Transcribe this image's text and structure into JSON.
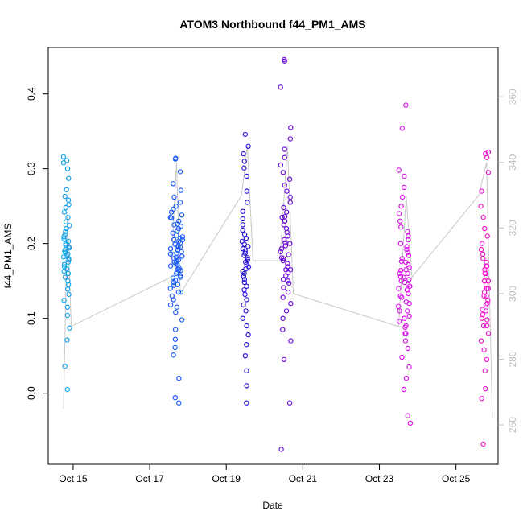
{
  "chart_data": {
    "type": "scatter",
    "title": "ATOM3 Northbound f44_PM1_AMS",
    "xlabel": "Date",
    "ylabel": "f44_PM1_AMS",
    "xlim": [
      14.35,
      26.1
    ],
    "ylim": [
      -0.095,
      0.462
    ],
    "y2lim": [
      248.0,
      375.0
    ],
    "x_ticks": [
      {
        "value": 15,
        "label": "Oct 15"
      },
      {
        "value": 17,
        "label": "Oct 17"
      },
      {
        "value": 19,
        "label": "Oct 19"
      },
      {
        "value": 21,
        "label": "Oct 21"
      },
      {
        "value": 23,
        "label": "Oct 23"
      },
      {
        "value": 25,
        "label": "Oct 25"
      }
    ],
    "y_ticks": [
      0.0,
      0.1,
      0.2,
      0.3,
      0.4
    ],
    "y_tick_labels": [
      "0.0",
      "0.1",
      "0.2",
      "0.3",
      "0.4"
    ],
    "y2_ticks": [
      260,
      280,
      300,
      320,
      340,
      360
    ],
    "y2_tick_labels": [
      "260",
      "280",
      "300",
      "320",
      "340",
      "360"
    ],
    "grid": false,
    "series": [
      {
        "color": "#1aa3e8",
        "x_center": 14.82,
        "x_spread": 0.09,
        "points": [
          0.005,
          0.036,
          0.071,
          0.087,
          0.104,
          0.115,
          0.124,
          0.132,
          0.139,
          0.145,
          0.15,
          0.155,
          0.16,
          0.163,
          0.166,
          0.169,
          0.172,
          0.175,
          0.178,
          0.18,
          0.182,
          0.184,
          0.186,
          0.188,
          0.19,
          0.192,
          0.194,
          0.196,
          0.198,
          0.2,
          0.203,
          0.206,
          0.209,
          0.212,
          0.216,
          0.22,
          0.224,
          0.229,
          0.235,
          0.242,
          0.248,
          0.252,
          0.258,
          0.263,
          0.272,
          0.287,
          0.3,
          0.308,
          0.311,
          0.316
        ]
      },
      {
        "color": "#1f5ef5",
        "x_center": 17.7,
        "x_spread": 0.16,
        "points": [
          -0.013,
          -0.006,
          0.02,
          0.051,
          0.061,
          0.072,
          0.085,
          0.098,
          0.108,
          0.118,
          0.125,
          0.13,
          0.135,
          0.14,
          0.144,
          0.148,
          0.151,
          0.154,
          0.157,
          0.16,
          0.162,
          0.164,
          0.166,
          0.168,
          0.17,
          0.172,
          0.174,
          0.176,
          0.178,
          0.18,
          0.181,
          0.183,
          0.185,
          0.187,
          0.189,
          0.191,
          0.193,
          0.195,
          0.197,
          0.199,
          0.201,
          0.203,
          0.205,
          0.207,
          0.209,
          0.211,
          0.214,
          0.217,
          0.22,
          0.223,
          0.226,
          0.23,
          0.234,
          0.238,
          0.242,
          0.246,
          0.25,
          0.255,
          0.262,
          0.271,
          0.28,
          0.296,
          0.313,
          0.314,
          0.186,
          0.175,
          0.165,
          0.155,
          0.195,
          0.205,
          0.145,
          0.135,
          0.225,
          0.235,
          0.125,
          0.115
        ]
      },
      {
        "color": "#2b16d9",
        "x_center": 19.5,
        "x_spread": 0.09,
        "points": [
          -0.013,
          0.01,
          0.03,
          0.05,
          0.065,
          0.078,
          0.09,
          0.1,
          0.11,
          0.118,
          0.125,
          0.132,
          0.138,
          0.143,
          0.148,
          0.152,
          0.156,
          0.16,
          0.163,
          0.166,
          0.169,
          0.172,
          0.175,
          0.178,
          0.181,
          0.184,
          0.187,
          0.19,
          0.193,
          0.196,
          0.199,
          0.203,
          0.207,
          0.212,
          0.218,
          0.225,
          0.233,
          0.243,
          0.255,
          0.27,
          0.29,
          0.31,
          0.32,
          0.346,
          0.33,
          0.301
        ]
      },
      {
        "color": "#6e10d6",
        "x_center": 20.55,
        "x_spread": 0.14,
        "points": [
          -0.075,
          -0.013,
          0.045,
          0.07,
          0.085,
          0.1,
          0.11,
          0.12,
          0.128,
          0.135,
          0.141,
          0.147,
          0.152,
          0.157,
          0.161,
          0.165,
          0.169,
          0.173,
          0.177,
          0.181,
          0.185,
          0.189,
          0.193,
          0.197,
          0.201,
          0.205,
          0.21,
          0.215,
          0.22,
          0.225,
          0.23,
          0.236,
          0.242,
          0.248,
          0.255,
          0.262,
          0.27,
          0.278,
          0.286,
          0.295,
          0.305,
          0.315,
          0.326,
          0.34,
          0.355,
          0.409,
          0.444,
          0.446,
          0.235,
          0.2,
          0.18,
          0.165,
          0.15
        ]
      },
      {
        "color": "#d81ae8",
        "x_center": 23.65,
        "x_spread": 0.16,
        "points": [
          -0.04,
          -0.03,
          0.005,
          0.02,
          0.035,
          0.048,
          0.06,
          0.07,
          0.08,
          0.088,
          0.096,
          0.103,
          0.11,
          0.116,
          0.122,
          0.128,
          0.133,
          0.138,
          0.143,
          0.148,
          0.152,
          0.156,
          0.16,
          0.164,
          0.168,
          0.172,
          0.176,
          0.18,
          0.184,
          0.188,
          0.192,
          0.196,
          0.2,
          0.205,
          0.21,
          0.216,
          0.222,
          0.23,
          0.24,
          0.25,
          0.262,
          0.275,
          0.29,
          0.298,
          0.354,
          0.385,
          0.12,
          0.13,
          0.14,
          0.15,
          0.16,
          0.1,
          0.09,
          0.08,
          0.11,
          0.145,
          0.155,
          0.165,
          0.175
        ]
      },
      {
        "color": "#f018c8",
        "x_center": 25.75,
        "x_spread": 0.1,
        "points": [
          -0.068,
          -0.007,
          0.006,
          0.03,
          0.045,
          0.058,
          0.07,
          0.08,
          0.09,
          0.098,
          0.105,
          0.112,
          0.118,
          0.124,
          0.13,
          0.135,
          0.14,
          0.145,
          0.15,
          0.155,
          0.16,
          0.165,
          0.17,
          0.175,
          0.18,
          0.186,
          0.192,
          0.2,
          0.21,
          0.22,
          0.235,
          0.25,
          0.27,
          0.295,
          0.315,
          0.32,
          0.322,
          0.14,
          0.13,
          0.12,
          0.15,
          0.16,
          0.11,
          0.1,
          0.17,
          0.09
        ]
      }
    ],
    "secondary_line": {
      "color": "#c8c8c8",
      "x": [
        14.75,
        14.85,
        14.95,
        17.55,
        17.7,
        17.8,
        19.4,
        19.55,
        19.7,
        20.4,
        20.6,
        20.75,
        23.5,
        23.7,
        23.85,
        25.6,
        25.8,
        25.95
      ],
      "y2": [
        265,
        325,
        290,
        305,
        340,
        300,
        330,
        345,
        310,
        310,
        345,
        300,
        290,
        330,
        305,
        330,
        340,
        262
      ]
    }
  }
}
